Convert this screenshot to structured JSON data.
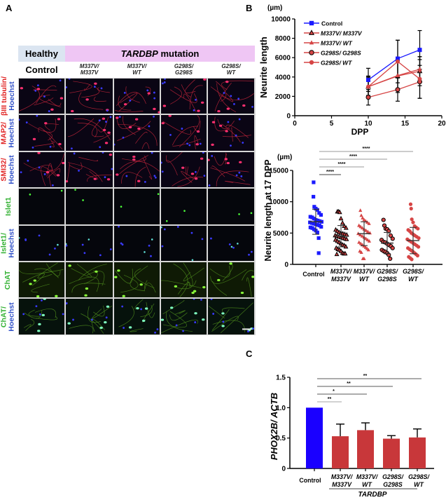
{
  "panels": {
    "A": {
      "label": "A",
      "header": {
        "healthy": "Healthy",
        "mutation_gene": "TARDBP",
        "mutation_word": " mutation"
      },
      "columns": [
        {
          "line1": "Control",
          "line2": ""
        },
        {
          "line1": "M337V/",
          "line2": "M337V"
        },
        {
          "line1": "M337V/",
          "line2": "WT"
        },
        {
          "line1": "G298S/",
          "line2": "G298S"
        },
        {
          "line1": "G298S/",
          "line2": "WT"
        }
      ],
      "rows": [
        {
          "marker": "βIII tubulin/",
          "stain": "Hoechst",
          "marker_color": "#e02020",
          "stain_color": "#3050c8",
          "channel": "red"
        },
        {
          "marker": "MAP2/",
          "stain": "Hoechst",
          "marker_color": "#e02020",
          "stain_color": "#3050c8",
          "channel": "red"
        },
        {
          "marker": "SMI32/",
          "stain": "Hoechst",
          "marker_color": "#e02020",
          "stain_color": "#3050c8",
          "channel": "red"
        },
        {
          "marker": "Islet1",
          "stain": "",
          "marker_color": "#30b030",
          "stain_color": "#3050c8",
          "channel": "green-sparse"
        },
        {
          "marker": "Islet1/",
          "stain": "Hoechst",
          "marker_color": "#30b030",
          "stain_color": "#3050c8",
          "channel": "blue-sparse"
        },
        {
          "marker": "ChAT",
          "stain": "",
          "marker_color": "#30b030",
          "stain_color": "#3050c8",
          "channel": "green"
        },
        {
          "marker": "ChAT/",
          "stain": "Hoechst",
          "marker_color": "#30b030",
          "stain_color": "#3050c8",
          "channel": "green-blue"
        }
      ],
      "colors": {
        "healthy_band": "#dbe5f1",
        "mutation_band": "#efc6f4"
      }
    },
    "B": {
      "label": "B"
    },
    "C": {
      "label": "C"
    }
  },
  "chart_data": [
    {
      "type": "line",
      "panel": "B-top",
      "title": "",
      "unit_label": "(µm)",
      "xlabel": "DPP",
      "ylabel": "Neurite length",
      "xlim": [
        0,
        20
      ],
      "ylim": [
        0,
        10000
      ],
      "xticks": [
        0,
        5,
        10,
        15,
        20
      ],
      "yticks": [
        0,
        2000,
        4000,
        6000,
        8000,
        10000
      ],
      "x": [
        10,
        14,
        17
      ],
      "legend_position": "top-left",
      "series": [
        {
          "name": "Control",
          "marker": "square",
          "color": "#1a1aff",
          "values": [
            3700,
            5900,
            6800
          ],
          "error": [
            1200,
            1900,
            2000
          ]
        },
        {
          "name": "M337V/ M337V",
          "marker": "triangle-outlined",
          "color": "#d64545",
          "values": [
            3000,
            4100,
            4600
          ],
          "error": [
            900,
            1700,
            1500
          ]
        },
        {
          "name": "M337V/ WT",
          "marker": "triangle",
          "color": "#d64545",
          "values": [
            3000,
            4150,
            4800
          ],
          "error": [
            1000,
            1500,
            1300
          ]
        },
        {
          "name": "G298S/ G298S",
          "marker": "circle-outlined",
          "color": "#d64545",
          "values": [
            1900,
            2700,
            3500
          ],
          "error": [
            800,
            1200,
            1700
          ]
        },
        {
          "name": "G298S/ WT",
          "marker": "circle",
          "color": "#d64545",
          "values": [
            3000,
            5600,
            3800
          ],
          "error": [
            1100,
            2200,
            2000
          ]
        }
      ]
    },
    {
      "type": "scatter",
      "panel": "B-bottom",
      "title": "",
      "unit_label": "(µm)",
      "xlabel": "",
      "ylabel": "Neurite length at 17 DPP",
      "ylim": [
        0,
        15000
      ],
      "yticks": [
        0,
        5000,
        10000,
        15000
      ],
      "categories": [
        {
          "line1": "Control",
          "line2": ""
        },
        {
          "line1": "M337V/",
          "line2": "M337V"
        },
        {
          "line1": "M337V/",
          "line2": "WT"
        },
        {
          "line1": "G298S/",
          "line2": "G298S"
        },
        {
          "line1": "G298S/",
          "line2": "WT"
        }
      ],
      "series": [
        {
          "name": "Control",
          "marker": "square",
          "color": "#1a1aff",
          "mean": 6800,
          "sd": 2000,
          "values": [
            13100,
            10800,
            9200,
            8900,
            8700,
            8200,
            7900,
            7600,
            7500,
            7300,
            7100,
            7000,
            6900,
            6800,
            6700,
            6600,
            6500,
            6400,
            6300,
            6200,
            6000,
            5900,
            5800,
            5600,
            5400,
            5100,
            4200,
            1800
          ]
        },
        {
          "name": "M337V/ M337V",
          "marker": "triangle-outlined",
          "color": "#d64545",
          "mean": 4500,
          "sd": 1700,
          "values": [
            8400,
            8400,
            8300,
            7300,
            6600,
            6100,
            5800,
            5500,
            5300,
            5100,
            5000,
            4900,
            4800,
            4700,
            4600,
            4500,
            4400,
            4300,
            4200,
            4100,
            4000,
            3900,
            3700,
            3500,
            3300,
            3100,
            3000,
            2800,
            2600,
            2400,
            2300,
            2100,
            1800,
            1700,
            1700,
            1600
          ]
        },
        {
          "name": "M337V/ WT",
          "marker": "triangle",
          "color": "#d64545",
          "mean": 4900,
          "sd": 1900,
          "values": [
            8600,
            7800,
            7400,
            7100,
            6900,
            6700,
            6500,
            6200,
            6000,
            5800,
            5600,
            5400,
            5200,
            5000,
            4900,
            4700,
            4500,
            4300,
            4100,
            3900,
            3700,
            3500,
            3300,
            3100,
            2900,
            2700,
            2500,
            2300,
            2100,
            1900,
            900,
            900
          ]
        },
        {
          "name": "G298S/ G298S",
          "marker": "circle-outlined",
          "color": "#d64545",
          "mean": 3400,
          "sd": 1700,
          "values": [
            7100,
            6200,
            5700,
            5600,
            5300,
            4600,
            4100,
            3900,
            3600,
            3500,
            3300,
            3100,
            2900,
            2600,
            2300,
            2100,
            2000,
            1800,
            1500,
            900
          ]
        },
        {
          "name": "G298S/ WT",
          "marker": "circle",
          "color": "#d64545",
          "mean": 3800,
          "sd": 2100,
          "values": [
            9600,
            8900,
            7200,
            6700,
            6100,
            5900,
            5700,
            5500,
            5300,
            5000,
            4800,
            4600,
            4400,
            4200,
            4000,
            3800,
            3600,
            3400,
            3200,
            3000,
            2800,
            2600,
            2400,
            2200,
            2000,
            1800,
            1600,
            1400,
            1200,
            1000,
            800
          ]
        }
      ],
      "significance": [
        {
          "from": 0,
          "to": 1,
          "label": "****"
        },
        {
          "from": 0,
          "to": 2,
          "label": "****"
        },
        {
          "from": 0,
          "to": 3,
          "label": "****"
        },
        {
          "from": 0,
          "to": 4,
          "label": "****"
        }
      ]
    },
    {
      "type": "bar",
      "panel": "C",
      "title": "",
      "xlabel": "",
      "ylabel_italic": "PHOX2B/ ACTB",
      "ylim": [
        0,
        1.5
      ],
      "yticks": [
        "0",
        "0.5",
        "1.0",
        "1.5"
      ],
      "categories": [
        {
          "line1": "Control",
          "line2": ""
        },
        {
          "line1": "M337V/",
          "line2": "M337V"
        },
        {
          "line1": "M337V/",
          "line2": "WT"
        },
        {
          "line1": "G298S/",
          "line2": "G298S"
        },
        {
          "line1": "G298S/",
          "line2": "WT"
        }
      ],
      "values": [
        1.0,
        0.53,
        0.63,
        0.49,
        0.51
      ],
      "errors": [
        0,
        0.2,
        0.12,
        0.05,
        0.14
      ],
      "colors": [
        "#1a00ff",
        "#c8373a",
        "#c8373a",
        "#c8373a",
        "#c8373a"
      ],
      "group_label": "TARDBP",
      "significance": [
        {
          "from": 0,
          "to": 1,
          "label": "**"
        },
        {
          "from": 0,
          "to": 2,
          "label": "*"
        },
        {
          "from": 0,
          "to": 3,
          "label": "**"
        },
        {
          "from": 0,
          "to": 4,
          "label": "**"
        }
      ]
    }
  ]
}
